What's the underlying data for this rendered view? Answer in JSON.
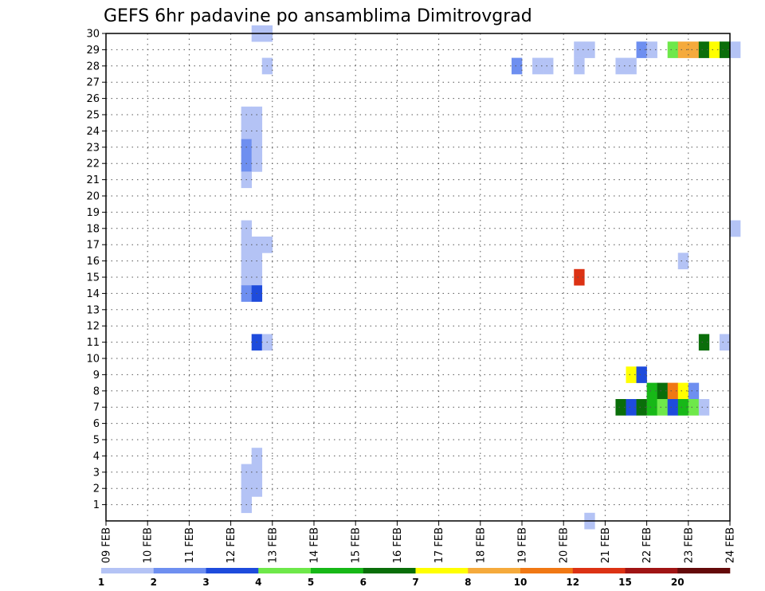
{
  "chart_data": {
    "type": "heatmap",
    "title": "GEFS 6hr padavine po ansamblima Dimitrovgrad",
    "xlabel": "",
    "ylabel": "",
    "x_ticks": [
      "09 FEB",
      "10 FEB",
      "11 FEB",
      "12 FEB",
      "13 FEB",
      "14 FEB",
      "15 FEB",
      "16 FEB",
      "17 FEB",
      "18 FEB",
      "19 FEB",
      "20 FEB",
      "21 FEB",
      "22 FEB",
      "23 FEB",
      "24 FEB"
    ],
    "y_ticks": [
      "1",
      "2",
      "3",
      "4",
      "5",
      "6",
      "7",
      "8",
      "9",
      "10",
      "11",
      "12",
      "13",
      "14",
      "15",
      "16",
      "17",
      "18",
      "19",
      "20",
      "21",
      "22",
      "23",
      "24",
      "25",
      "26",
      "27",
      "28",
      "29",
      "30"
    ],
    "x_range_days": [
      0,
      15
    ],
    "y_range": [
      0,
      30
    ],
    "grid": true,
    "legend": {
      "placement": "bottom",
      "levels": [
        "1",
        "2",
        "3",
        "4",
        "5",
        "6",
        "7",
        "8",
        "10",
        "12",
        "15",
        "20"
      ],
      "colors": [
        "#b4c3f5",
        "#6e8ff0",
        "#1e4bdc",
        "#6ee84a",
        "#17b817",
        "#0a6e0a",
        "#ffff00",
        "#f5aa3c",
        "#f07814",
        "#dc3214",
        "#a01414",
        "#640a0a"
      ]
    },
    "cells_note_units": "x = 6-hour step index from 09 FEB 00UTC (4 per day), y = ensemble member, c = color class index (0..11)",
    "cells": [
      {
        "x": 14,
        "y": 30,
        "c": 0
      },
      {
        "x": 15,
        "y": 30,
        "c": 0
      },
      {
        "x": 15,
        "y": 28,
        "c": 0
      },
      {
        "x": 13,
        "y": 25,
        "c": 0
      },
      {
        "x": 14,
        "y": 25,
        "c": 0
      },
      {
        "x": 13,
        "y": 24,
        "c": 0
      },
      {
        "x": 14,
        "y": 24,
        "c": 0
      },
      {
        "x": 13,
        "y": 23,
        "c": 1
      },
      {
        "x": 14,
        "y": 23,
        "c": 0
      },
      {
        "x": 13,
        "y": 22,
        "c": 1
      },
      {
        "x": 14,
        "y": 22,
        "c": 0
      },
      {
        "x": 13,
        "y": 21,
        "c": 0
      },
      {
        "x": 13,
        "y": 18,
        "c": 0
      },
      {
        "x": 13,
        "y": 17,
        "c": 0
      },
      {
        "x": 14,
        "y": 17,
        "c": 0
      },
      {
        "x": 15,
        "y": 17,
        "c": 0
      },
      {
        "x": 13,
        "y": 16,
        "c": 0
      },
      {
        "x": 14,
        "y": 16,
        "c": 0
      },
      {
        "x": 13,
        "y": 15,
        "c": 0
      },
      {
        "x": 14,
        "y": 15,
        "c": 0
      },
      {
        "x": 13,
        "y": 14,
        "c": 1
      },
      {
        "x": 14,
        "y": 14,
        "c": 2
      },
      {
        "x": 14,
        "y": 11,
        "c": 2
      },
      {
        "x": 15,
        "y": 11,
        "c": 0
      },
      {
        "x": 14,
        "y": 4,
        "c": 0
      },
      {
        "x": 13,
        "y": 3,
        "c": 0
      },
      {
        "x": 14,
        "y": 3,
        "c": 0
      },
      {
        "x": 13,
        "y": 2,
        "c": 0
      },
      {
        "x": 14,
        "y": 2,
        "c": 0
      },
      {
        "x": 13,
        "y": 1,
        "c": 0
      },
      {
        "x": 39,
        "y": 28,
        "c": 1
      },
      {
        "x": 41,
        "y": 28,
        "c": 0
      },
      {
        "x": 42,
        "y": 28,
        "c": 0
      },
      {
        "x": 45,
        "y": 29,
        "c": 0
      },
      {
        "x": 46,
        "y": 29,
        "c": 0
      },
      {
        "x": 45,
        "y": 28,
        "c": 0
      },
      {
        "x": 49,
        "y": 28,
        "c": 0
      },
      {
        "x": 50,
        "y": 28,
        "c": 0
      },
      {
        "x": 51,
        "y": 29,
        "c": 1
      },
      {
        "x": 52,
        "y": 29,
        "c": 0
      },
      {
        "x": 54,
        "y": 29,
        "c": 3
      },
      {
        "x": 55,
        "y": 29,
        "c": 7
      },
      {
        "x": 56,
        "y": 29,
        "c": 7
      },
      {
        "x": 57,
        "y": 29,
        "c": 5
      },
      {
        "x": 58,
        "y": 29,
        "c": 6
      },
      {
        "x": 59,
        "y": 29,
        "c": 5
      },
      {
        "x": 60,
        "y": 29,
        "c": 0
      },
      {
        "x": 45,
        "y": 15,
        "c": 9
      },
      {
        "x": 55,
        "y": 16,
        "c": 0
      },
      {
        "x": 60,
        "y": 18,
        "c": 0
      },
      {
        "x": 57,
        "y": 11,
        "c": 5
      },
      {
        "x": 59,
        "y": 11,
        "c": 0
      },
      {
        "x": 50,
        "y": 9,
        "c": 6
      },
      {
        "x": 51,
        "y": 9,
        "c": 2
      },
      {
        "x": 52,
        "y": 8,
        "c": 4
      },
      {
        "x": 53,
        "y": 8,
        "c": 5
      },
      {
        "x": 54,
        "y": 8,
        "c": 8
      },
      {
        "x": 55,
        "y": 8,
        "c": 6
      },
      {
        "x": 56,
        "y": 8,
        "c": 1
      },
      {
        "x": 49,
        "y": 7,
        "c": 5
      },
      {
        "x": 50,
        "y": 7,
        "c": 2
      },
      {
        "x": 51,
        "y": 7,
        "c": 5
      },
      {
        "x": 52,
        "y": 7,
        "c": 4
      },
      {
        "x": 53,
        "y": 7,
        "c": 3
      },
      {
        "x": 54,
        "y": 7,
        "c": 2
      },
      {
        "x": 55,
        "y": 7,
        "c": 4
      },
      {
        "x": 56,
        "y": 7,
        "c": 3
      },
      {
        "x": 57,
        "y": 7,
        "c": 0
      },
      {
        "x": 46,
        "y": 0,
        "c": 0
      }
    ]
  }
}
